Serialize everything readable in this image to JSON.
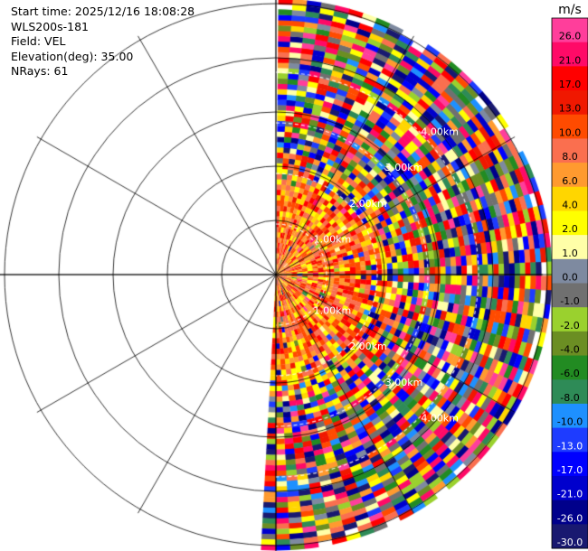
{
  "header": {
    "start_time": "Start time: 2025/12/16 18:08:28",
    "instrument": "WLS200s-181",
    "field": "Field: VEL",
    "elevation": "Elevation(deg): 35.00",
    "nrays": "NRays: 61"
  },
  "range_labels": [
    "1.00km",
    "2.00km",
    "3.00km",
    "4.00km"
  ],
  "colorbar": {
    "unit": "m/s",
    "ticks": [
      "26.0",
      "21.0",
      "17.0",
      "13.0",
      "10.0",
      "8.0",
      "6.0",
      "4.0",
      "2.0",
      "1.0",
      "0.0",
      "-1.0",
      "-2.0",
      "-4.0",
      "-6.0",
      "-8.0",
      "-10.0",
      "-13.0",
      "-17.0",
      "-21.0",
      "-26.0",
      "-30.0"
    ],
    "colors": [
      "#ff3e9b",
      "#ff0a67",
      "#ff0000",
      "#f01800",
      "#ff4b00",
      "#fa6f4f",
      "#ff9a2f",
      "#ffd600",
      "#ffff00",
      "#ffffa8",
      "#7e8aa0",
      "#707070",
      "#9ad12e",
      "#6b8e23",
      "#228b22",
      "#2e8b57",
      "#1e90ff",
      "#1e3cff",
      "#0000ff",
      "#0000cd",
      "#00008b",
      "#191970"
    ]
  },
  "chart_data": {
    "type": "heatmap",
    "projection": "polar PPI sector",
    "field": "VEL",
    "units": "m/s",
    "elevation_deg": 35.0,
    "n_rays": 61,
    "azimuth_range_deg": [
      0,
      185
    ],
    "range_rings_km": [
      1,
      2,
      3,
      4
    ],
    "max_range_km": 4.0,
    "color_levels": [
      -30,
      -26,
      -21,
      -17,
      -13,
      -10,
      -8,
      -6,
      -4,
      -2,
      -1,
      0,
      1,
      2,
      4,
      6,
      8,
      10,
      13,
      17,
      21,
      26
    ],
    "near_range_values": {
      "range_km": [
        0,
        1.5
      ],
      "dominant_values_m_s": [
        8,
        10,
        13,
        4,
        2
      ]
    },
    "far_range_values": {
      "range_km": [
        1.5,
        4.0
      ],
      "description_values_m_s": [
        -30,
        26
      ]
    }
  }
}
